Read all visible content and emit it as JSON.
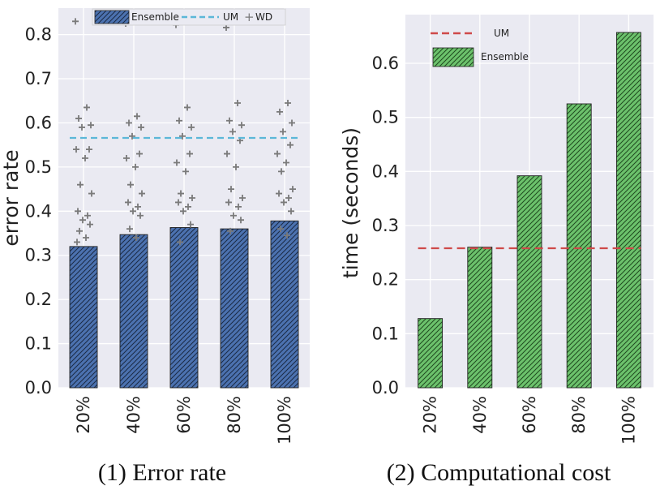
{
  "chart_data": [
    {
      "type": "bar",
      "title": "",
      "caption": "(1) Error rate",
      "xlabel": "",
      "ylabel": "error rate",
      "categories": [
        "20%",
        "40%",
        "60%",
        "80%",
        "100%"
      ],
      "ylim": [
        0,
        0.86
      ],
      "yticks": [
        "0.0",
        "0.1",
        "0.2",
        "0.3",
        "0.4",
        "0.5",
        "0.6",
        "0.7",
        "0.8"
      ],
      "grid": true,
      "legend_position": "top",
      "series": [
        {
          "name": "Ensemble",
          "kind": "bar",
          "color": "#4c72b0",
          "hatch": "///",
          "values": [
            0.32,
            0.347,
            0.363,
            0.36,
            0.378
          ]
        },
        {
          "name": "UM",
          "kind": "dashed-line",
          "color": "#5bb7d8",
          "value": 0.566
        },
        {
          "name": "WD",
          "kind": "scatter",
          "marker": "+",
          "color": "#7a7a7a",
          "points": [
            [
              0.83,
              0.635,
              0.61,
              0.595,
              0.59,
              0.54,
              0.54,
              0.52,
              0.46,
              0.44,
              0.4,
              0.39,
              0.38,
              0.37,
              0.355,
              0.34,
              0.33
            ],
            [
              0.825,
              0.615,
              0.6,
              0.59,
              0.57,
              0.53,
              0.52,
              0.5,
              0.46,
              0.44,
              0.42,
              0.41,
              0.4,
              0.39,
              0.36,
              0.34
            ],
            [
              0.822,
              0.635,
              0.605,
              0.59,
              0.57,
              0.53,
              0.51,
              0.49,
              0.44,
              0.43,
              0.42,
              0.41,
              0.4,
              0.37,
              0.33
            ],
            [
              0.816,
              0.645,
              0.605,
              0.595,
              0.58,
              0.56,
              0.53,
              0.5,
              0.45,
              0.43,
              0.42,
              0.41,
              0.39,
              0.38,
              0.355
            ],
            [
              0.832,
              0.645,
              0.625,
              0.6,
              0.58,
              0.55,
              0.53,
              0.51,
              0.49,
              0.45,
              0.44,
              0.43,
              0.42,
              0.4,
              0.36,
              0.345
            ]
          ]
        }
      ]
    },
    {
      "type": "bar",
      "title": "",
      "caption": "(2) Computational cost",
      "xlabel": "",
      "ylabel": "time (seconds)",
      "categories": [
        "20%",
        "40%",
        "60%",
        "80%",
        "100%"
      ],
      "ylim": [
        0,
        0.69
      ],
      "yticks": [
        "0.0",
        "0.1",
        "0.2",
        "0.3",
        "0.4",
        "0.5",
        "0.6"
      ],
      "grid": true,
      "legend_position": "top-left",
      "series": [
        {
          "name": "Ensemble",
          "kind": "bar",
          "color": "#6cc26c",
          "hatch": "///",
          "values": [
            0.128,
            0.26,
            0.392,
            0.525,
            0.657
          ]
        },
        {
          "name": "UM",
          "kind": "dashed-line",
          "color": "#cf4a4a",
          "value": 0.258
        }
      ]
    }
  ]
}
